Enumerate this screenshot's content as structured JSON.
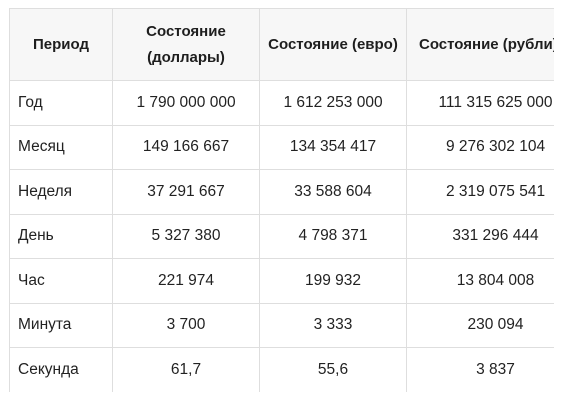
{
  "table": {
    "headers": [
      "Период",
      "Состояние (доллары)",
      "Состояние (евро)",
      "Состояние (рубли)"
    ],
    "rows": [
      {
        "period": "Год",
        "usd": "1 790 000 000",
        "eur": "1 612 253 000",
        "rub": "111 315 625 000"
      },
      {
        "period": "Месяц",
        "usd": "149 166 667",
        "eur": "134 354 417",
        "rub": "9 276 302 104"
      },
      {
        "period": "Неделя",
        "usd": "37 291 667",
        "eur": "33 588 604",
        "rub": "2 319 075 541"
      },
      {
        "period": "День",
        "usd": "5 327 380",
        "eur": "4 798 371",
        "rub": "331 296 444"
      },
      {
        "period": "Час",
        "usd": "221 974",
        "eur": "199 932",
        "rub": "13 804 008"
      },
      {
        "period": "Минута",
        "usd": "3 700",
        "eur": "3 333",
        "rub": "230 094"
      },
      {
        "period": "Секунда",
        "usd": "61,7",
        "eur": "55,6",
        "rub": "3 837"
      }
    ]
  }
}
